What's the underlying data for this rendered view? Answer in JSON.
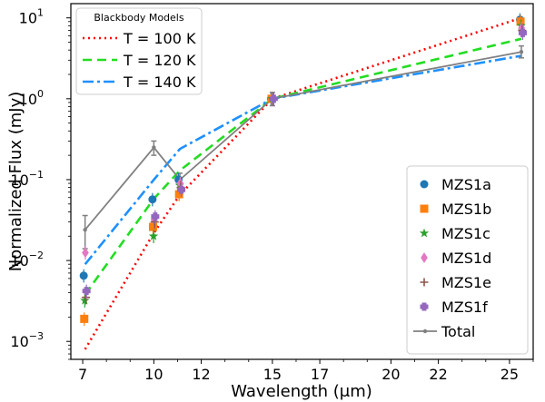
{
  "chart_data": {
    "type": "scatter",
    "xlabel": "Wavelength (μm)",
    "ylabel": "Normalized Flux (mJy)",
    "xlim": [
      6.5,
      26.0
    ],
    "ylim": [
      0.0006,
      15
    ],
    "yscale": "log",
    "xticks": [
      7,
      10,
      12,
      15,
      17,
      20,
      22,
      25
    ],
    "yticks": [
      {
        "value": 0.001,
        "base": "10",
        "exp": "−3"
      },
      {
        "value": 0.01,
        "base": "10",
        "exp": "−2"
      },
      {
        "value": 0.1,
        "base": "10",
        "exp": "−1"
      },
      {
        "value": 1,
        "base": "10",
        "exp": "0"
      },
      {
        "value": 10,
        "base": "10",
        "exp": "1"
      }
    ],
    "models_legend_title": "Blackbody Models",
    "models": [
      {
        "name": "T = 100 K",
        "color": "#ff0000",
        "dash": "2,4",
        "x": [
          7.1,
          10.0,
          11.1,
          15.0,
          25.5
        ],
        "y": [
          0.0008,
          0.022,
          0.065,
          1.0,
          10.0
        ]
      },
      {
        "name": "T = 120 K",
        "color": "#22dd22",
        "dash": "10,6",
        "x": [
          7.1,
          10.0,
          11.1,
          15.0,
          25.5
        ],
        "y": [
          0.0038,
          0.058,
          0.13,
          1.0,
          5.5
        ]
      },
      {
        "name": "T = 140 K",
        "color": "#1e90ff",
        "dash": "12,4,3,4",
        "x": [
          7.1,
          10.0,
          11.1,
          15.0,
          25.5
        ],
        "y": [
          0.009,
          0.1,
          0.24,
          1.0,
          3.4
        ]
      }
    ],
    "series": [
      {
        "name": "MZS1a",
        "marker": "circle",
        "color": "#1f77b4",
        "x": [
          7.1,
          10.0,
          11.1,
          15.0,
          25.5
        ],
        "y": [
          0.0065,
          0.057,
          0.1,
          1.0,
          9.5
        ]
      },
      {
        "name": "MZS1b",
        "marker": "square",
        "color": "#ff7f0e",
        "x": [
          7.1,
          10.0,
          11.1,
          15.0,
          25.5
        ],
        "y": [
          0.0019,
          0.026,
          0.066,
          1.0,
          9.0
        ]
      },
      {
        "name": "MZS1c",
        "marker": "star",
        "color": "#2ca02c",
        "x": [
          7.1,
          10.0,
          11.1,
          15.0,
          25.5
        ],
        "y": [
          0.0032,
          0.02,
          0.085,
          1.0,
          8.0
        ]
      },
      {
        "name": "MZS1d",
        "marker": "diamond",
        "color": "#e377c2",
        "x": [
          7.1,
          10.0,
          11.1,
          15.0,
          25.5
        ],
        "y": [
          0.0125,
          0.032,
          0.09,
          1.0,
          7.5
        ]
      },
      {
        "name": "MZS1e",
        "marker": "plus",
        "color": "#8c564b",
        "x": [
          7.1,
          10.0,
          11.1,
          15.0,
          25.5
        ],
        "y": [
          0.0035,
          0.03,
          0.08,
          1.0,
          7.0
        ]
      },
      {
        "name": "MZS1f",
        "marker": "pluscross",
        "color": "#9467bd",
        "x": [
          7.1,
          10.0,
          11.1,
          15.0,
          25.5
        ],
        "y": [
          0.0042,
          0.035,
          0.075,
          1.0,
          6.5
        ]
      }
    ],
    "total": {
      "name": "Total",
      "color": "#808080",
      "x": [
        7.1,
        10.0,
        11.1,
        15.0,
        25.5
      ],
      "y": [
        0.024,
        0.25,
        0.1,
        1.0,
        3.8
      ],
      "yerr_lo": [
        0.01,
        0.05,
        0.02,
        0.18,
        0.6
      ],
      "yerr_hi": [
        0.012,
        0.05,
        0.02,
        0.2,
        0.7
      ]
    },
    "legend_position": "lower right",
    "models_legend_position": "upper left"
  }
}
